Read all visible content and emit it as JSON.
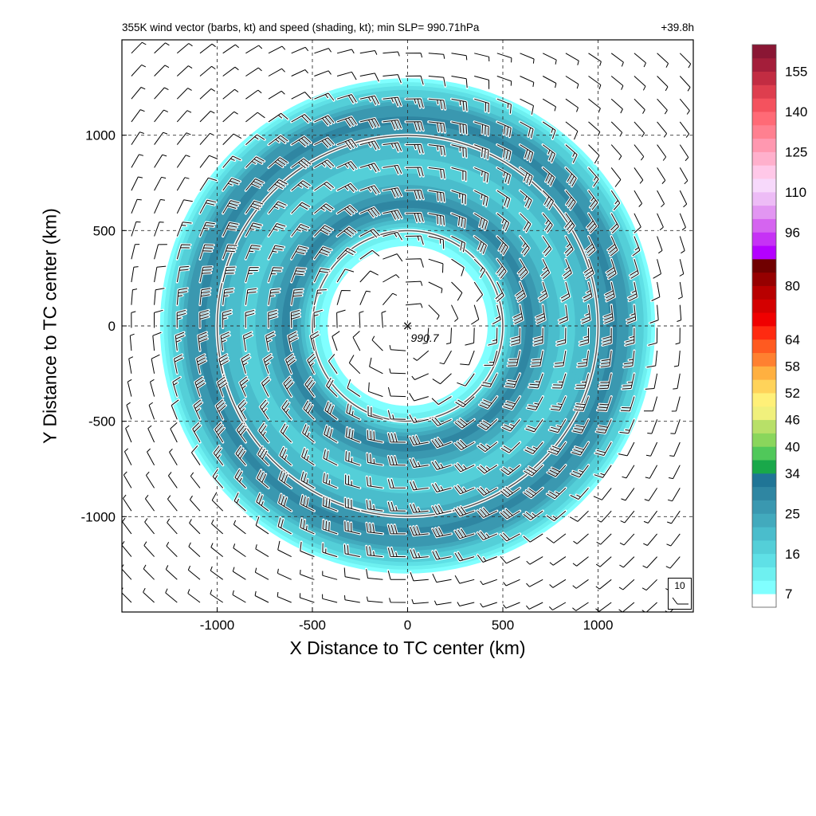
{
  "title_left": "355K wind vector (barbs, kt) and speed (shading, kt); min SLP= 990.71hPa",
  "title_right": "+39.8h",
  "chart_data": {
    "type": "heatmap",
    "description_fields": "TC-relative wind speed shading with wind barbs",
    "xlabel": "X Distance to TC center (km)",
    "ylabel": "Y Distance to TC center (km)",
    "xlim": [
      -1500,
      1500
    ],
    "ylim": [
      -1500,
      1500
    ],
    "xticks": [
      -1000,
      -500,
      0,
      500,
      1000
    ],
    "yticks": [
      -1000,
      -500,
      0,
      500,
      1000
    ],
    "grid": true,
    "center": {
      "x": 0,
      "y": 0,
      "marker": "×",
      "label": "990.7"
    },
    "range_rings_km": [
      500,
      1000
    ],
    "colorbar": {
      "levels": [
        7,
        10,
        13,
        16,
        19,
        22,
        25,
        28,
        31,
        34,
        37,
        40,
        43,
        46,
        49,
        52,
        55,
        58,
        61,
        64,
        68,
        72,
        76,
        80,
        84,
        88,
        92,
        96,
        101,
        106,
        110,
        115,
        120,
        125,
        130,
        135,
        140,
        145,
        150,
        155,
        160
      ],
      "tick_labels": [
        "7",
        "16",
        "25",
        "34",
        "40",
        "46",
        "52",
        "58",
        "64",
        "80",
        "96",
        "110",
        "125",
        "140",
        "155"
      ],
      "colors": [
        "#ffffff",
        "#80ffff",
        "#6ef0f0",
        "#5fe0e6",
        "#54cfd8",
        "#4abdcc",
        "#42aabd",
        "#3a98b0",
        "#2f86a2",
        "#207596",
        "#19a84a",
        "#50c85a",
        "#8ad65c",
        "#b8e068",
        "#f0f07c",
        "#fff078",
        "#ffd35a",
        "#ffb040",
        "#ff8030",
        "#ff5a20",
        "#ff2a10",
        "#f00000",
        "#d40000",
        "#b80000",
        "#960000",
        "#700000",
        "#b400ff",
        "#c632f5",
        "#d564f0",
        "#e296f2",
        "#edbcf6",
        "#f7d9fb",
        "#ffc8e8",
        "#ffb0cc",
        "#ff98b0",
        "#ff8090",
        "#ff6a76",
        "#f4525e",
        "#de3e4e",
        "#c22c42",
        "#a41e3a",
        "#8a1634"
      ],
      "tick_positions_level_index": [
        0,
        3,
        6,
        9,
        11,
        13,
        15,
        17,
        19,
        23,
        27,
        30,
        33,
        36,
        39
      ]
    },
    "barb_reference": {
      "label": "10",
      "value_kt": 10
    },
    "wind_profile": {
      "inner_calm_radius_km": 300,
      "speed_maxima_km": [
        650,
        1100
      ],
      "speed_minimum_km": 880,
      "max_speed_kt": 34,
      "outer_extent_km": 1450
    }
  }
}
